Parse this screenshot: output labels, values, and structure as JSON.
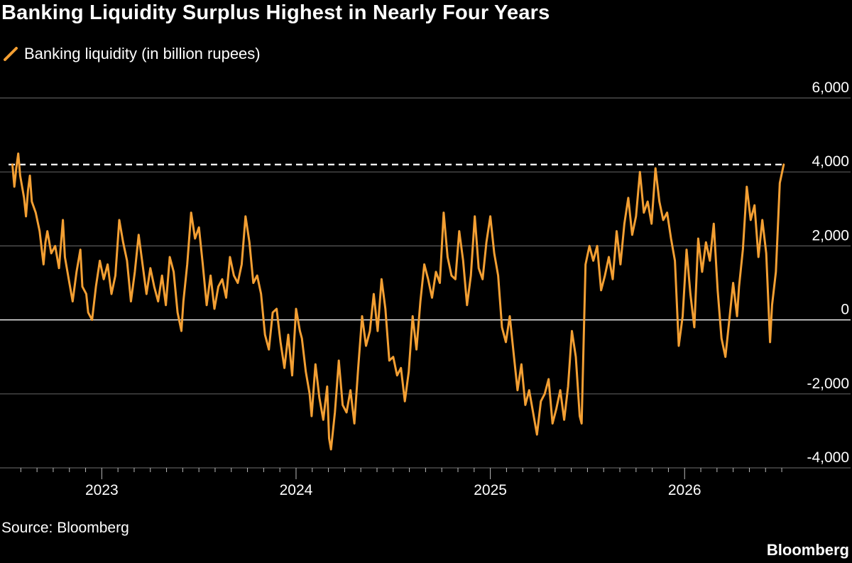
{
  "title": "Banking Liquidity Surplus Highest in Nearly Four Years",
  "source": "Source: Bloomberg",
  "brand": "Bloomberg",
  "colors": {
    "background": "#000000",
    "series": "#F39F33",
    "grid": "#5a5a5a",
    "zero": "#ffffff",
    "text": "#ffffff"
  },
  "chart_data": {
    "type": "line",
    "title": "Banking Liquidity Surplus Highest in Nearly Four Years",
    "xlabel": "",
    "ylabel": "",
    "legend": "top-left",
    "series": [
      {
        "name": "Banking liquidity (in billion rupees)",
        "points": [
          [
            2022.54,
            4200
          ],
          [
            2022.55,
            3600
          ],
          [
            2022.56,
            4100
          ],
          [
            2022.57,
            4500
          ],
          [
            2022.58,
            3900
          ],
          [
            2022.6,
            3300
          ],
          [
            2022.61,
            2800
          ],
          [
            2022.62,
            3500
          ],
          [
            2022.63,
            3900
          ],
          [
            2022.64,
            3200
          ],
          [
            2022.66,
            2900
          ],
          [
            2022.68,
            2400
          ],
          [
            2022.7,
            1500
          ],
          [
            2022.71,
            2100
          ],
          [
            2022.72,
            2400
          ],
          [
            2022.74,
            1800
          ],
          [
            2022.76,
            2000
          ],
          [
            2022.78,
            1400
          ],
          [
            2022.8,
            2700
          ],
          [
            2022.81,
            1700
          ],
          [
            2022.83,
            1100
          ],
          [
            2022.85,
            500
          ],
          [
            2022.87,
            1300
          ],
          [
            2022.89,
            1900
          ],
          [
            2022.9,
            900
          ],
          [
            2022.92,
            700
          ],
          [
            2022.93,
            200
          ],
          [
            2022.95,
            0
          ],
          [
            2022.97,
            900
          ],
          [
            2022.99,
            1600
          ],
          [
            2023.01,
            1100
          ],
          [
            2023.03,
            1500
          ],
          [
            2023.05,
            700
          ],
          [
            2023.07,
            1200
          ],
          [
            2023.09,
            2700
          ],
          [
            2023.11,
            2100
          ],
          [
            2023.13,
            1600
          ],
          [
            2023.15,
            500
          ],
          [
            2023.17,
            1300
          ],
          [
            2023.19,
            2300
          ],
          [
            2023.21,
            1500
          ],
          [
            2023.23,
            700
          ],
          [
            2023.25,
            1400
          ],
          [
            2023.27,
            900
          ],
          [
            2023.29,
            500
          ],
          [
            2023.31,
            1200
          ],
          [
            2023.33,
            400
          ],
          [
            2023.35,
            1700
          ],
          [
            2023.37,
            1300
          ],
          [
            2023.39,
            200
          ],
          [
            2023.41,
            -300
          ],
          [
            2023.42,
            500
          ],
          [
            2023.44,
            1500
          ],
          [
            2023.46,
            2900
          ],
          [
            2023.48,
            2200
          ],
          [
            2023.5,
            2500
          ],
          [
            2023.52,
            1500
          ],
          [
            2023.54,
            400
          ],
          [
            2023.56,
            1200
          ],
          [
            2023.58,
            300
          ],
          [
            2023.6,
            900
          ],
          [
            2023.62,
            1100
          ],
          [
            2023.64,
            600
          ],
          [
            2023.66,
            1700
          ],
          [
            2023.68,
            1200
          ],
          [
            2023.7,
            1000
          ],
          [
            2023.72,
            1500
          ],
          [
            2023.74,
            2800
          ],
          [
            2023.76,
            2100
          ],
          [
            2023.78,
            1000
          ],
          [
            2023.8,
            1200
          ],
          [
            2023.82,
            700
          ],
          [
            2023.84,
            -400
          ],
          [
            2023.86,
            -800
          ],
          [
            2023.88,
            200
          ],
          [
            2023.9,
            300
          ],
          [
            2023.92,
            -600
          ],
          [
            2023.94,
            -1300
          ],
          [
            2023.96,
            -400
          ],
          [
            2023.98,
            -1500
          ],
          [
            2024.0,
            300
          ],
          [
            2024.02,
            -300
          ],
          [
            2024.03,
            -500
          ],
          [
            2024.05,
            -1400
          ],
          [
            2024.07,
            -2000
          ],
          [
            2024.08,
            -2600
          ],
          [
            2024.1,
            -1200
          ],
          [
            2024.12,
            -2100
          ],
          [
            2024.14,
            -2700
          ],
          [
            2024.16,
            -1800
          ],
          [
            2024.17,
            -3200
          ],
          [
            2024.18,
            -3500
          ],
          [
            2024.2,
            -2500
          ],
          [
            2024.22,
            -1100
          ],
          [
            2024.24,
            -2300
          ],
          [
            2024.26,
            -2500
          ],
          [
            2024.28,
            -1900
          ],
          [
            2024.3,
            -2800
          ],
          [
            2024.32,
            -1300
          ],
          [
            2024.34,
            100
          ],
          [
            2024.36,
            -700
          ],
          [
            2024.38,
            -300
          ],
          [
            2024.4,
            700
          ],
          [
            2024.42,
            -300
          ],
          [
            2024.44,
            1100
          ],
          [
            2024.46,
            300
          ],
          [
            2024.48,
            -1100
          ],
          [
            2024.5,
            -1000
          ],
          [
            2024.52,
            -1500
          ],
          [
            2024.54,
            -1300
          ],
          [
            2024.56,
            -2200
          ],
          [
            2024.58,
            -1400
          ],
          [
            2024.6,
            100
          ],
          [
            2024.62,
            -800
          ],
          [
            2024.64,
            500
          ],
          [
            2024.66,
            1500
          ],
          [
            2024.68,
            1100
          ],
          [
            2024.7,
            600
          ],
          [
            2024.72,
            1300
          ],
          [
            2024.74,
            1000
          ],
          [
            2024.76,
            2900
          ],
          [
            2024.78,
            1700
          ],
          [
            2024.8,
            1200
          ],
          [
            2024.82,
            1100
          ],
          [
            2024.84,
            2400
          ],
          [
            2024.86,
            1600
          ],
          [
            2024.88,
            400
          ],
          [
            2024.9,
            1200
          ],
          [
            2024.92,
            2800
          ],
          [
            2024.94,
            1400
          ],
          [
            2024.96,
            1100
          ],
          [
            2024.98,
            2100
          ],
          [
            2025.0,
            2800
          ],
          [
            2025.02,
            1800
          ],
          [
            2025.04,
            1200
          ],
          [
            2025.06,
            -200
          ],
          [
            2025.08,
            -600
          ],
          [
            2025.1,
            100
          ],
          [
            2025.12,
            -900
          ],
          [
            2025.14,
            -1900
          ],
          [
            2025.16,
            -1200
          ],
          [
            2025.18,
            -2300
          ],
          [
            2025.2,
            -1900
          ],
          [
            2025.22,
            -2500
          ],
          [
            2025.24,
            -3100
          ],
          [
            2025.26,
            -2200
          ],
          [
            2025.28,
            -2000
          ],
          [
            2025.3,
            -1600
          ],
          [
            2025.32,
            -2800
          ],
          [
            2025.34,
            -2400
          ],
          [
            2025.36,
            -1900
          ],
          [
            2025.38,
            -2700
          ],
          [
            2025.4,
            -1800
          ],
          [
            2025.42,
            -300
          ],
          [
            2025.44,
            -1000
          ],
          [
            2025.46,
            -2600
          ],
          [
            2025.47,
            -2800
          ],
          [
            2025.49,
            1500
          ],
          [
            2025.51,
            2000
          ],
          [
            2025.53,
            1600
          ],
          [
            2025.55,
            2000
          ],
          [
            2025.57,
            800
          ],
          [
            2025.59,
            1200
          ],
          [
            2025.61,
            1700
          ],
          [
            2025.63,
            1100
          ],
          [
            2025.65,
            2400
          ],
          [
            2025.67,
            1500
          ],
          [
            2025.69,
            2600
          ],
          [
            2025.71,
            3300
          ],
          [
            2025.73,
            2300
          ],
          [
            2025.75,
            2800
          ],
          [
            2025.77,
            4000
          ],
          [
            2025.79,
            2900
          ],
          [
            2025.81,
            3200
          ],
          [
            2025.83,
            2600
          ],
          [
            2025.85,
            4100
          ],
          [
            2025.87,
            3200
          ],
          [
            2025.89,
            2700
          ],
          [
            2025.91,
            2900
          ],
          [
            2025.93,
            2200
          ],
          [
            2025.95,
            1600
          ],
          [
            2025.97,
            -700
          ],
          [
            2025.99,
            100
          ],
          [
            2026.01,
            1900
          ],
          [
            2026.03,
            700
          ],
          [
            2026.05,
            -200
          ],
          [
            2026.07,
            2200
          ],
          [
            2026.09,
            1300
          ],
          [
            2026.11,
            2100
          ],
          [
            2026.13,
            1600
          ],
          [
            2026.15,
            2600
          ],
          [
            2026.17,
            800
          ],
          [
            2026.19,
            -500
          ],
          [
            2026.21,
            -1000
          ],
          [
            2026.23,
            0
          ],
          [
            2026.25,
            1000
          ],
          [
            2026.27,
            100
          ],
          [
            2026.28,
            900
          ],
          [
            2026.3,
            1900
          ],
          [
            2026.32,
            3600
          ],
          [
            2026.34,
            2700
          ],
          [
            2026.36,
            3100
          ],
          [
            2026.38,
            1700
          ],
          [
            2026.4,
            2700
          ],
          [
            2026.42,
            1800
          ],
          [
            2026.44,
            -600
          ],
          [
            2026.45,
            400
          ],
          [
            2026.47,
            1300
          ],
          [
            2026.49,
            3700
          ],
          [
            2026.51,
            4200
          ]
        ]
      }
    ],
    "reference_line": {
      "y": 4200,
      "style": "dashed"
    },
    "x_ticks": [
      "2023",
      "2024",
      "2025",
      "2026"
    ],
    "x_tick_values": [
      2023,
      2024,
      2025,
      2026
    ],
    "y_ticks": [
      "6,000",
      "4,000",
      "2,000",
      "0",
      "-2,000",
      "-4,000"
    ],
    "y_tick_values": [
      6000,
      4000,
      2000,
      0,
      -2000,
      -4000
    ],
    "xlim": [
      2022.52,
      2026.54
    ],
    "ylim": [
      -4000,
      6000
    ],
    "minor_ticks_per_year": 12
  }
}
